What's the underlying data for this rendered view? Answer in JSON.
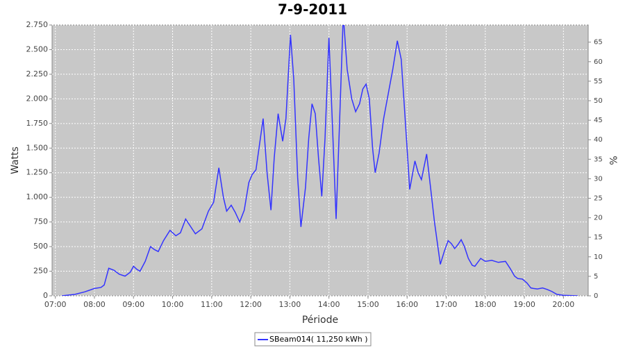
{
  "chart_data": {
    "type": "line",
    "title": "7-9-2011",
    "x_label": "Période",
    "y_label": "Watts",
    "y2_label": "%",
    "x": [
      "07:10",
      "07:30",
      "07:45",
      "08:00",
      "08:10",
      "08:15",
      "08:22",
      "08:30",
      "08:38",
      "08:47",
      "08:55",
      "09:00",
      "09:05",
      "09:10",
      "09:18",
      "09:26",
      "09:32",
      "09:38",
      "09:46",
      "09:56",
      "10:05",
      "10:12",
      "10:20",
      "10:28",
      "10:35",
      "10:45",
      "10:55",
      "11:03",
      "11:11",
      "11:18",
      "11:23",
      "11:30",
      "11:36",
      "11:43",
      "11:50",
      "11:57",
      "12:02",
      "12:08",
      "12:19",
      "12:25",
      "12:31",
      "12:36",
      "12:42",
      "12:49",
      "12:54",
      "13:01",
      "13:06",
      "13:12",
      "13:17",
      "13:24",
      "13:29",
      "13:34",
      "13:39",
      "13:44",
      "13:49",
      "13:54",
      "14:00",
      "14:05",
      "14:11",
      "14:16",
      "14:22",
      "14:28",
      "14:35",
      "14:41",
      "14:47",
      "14:52",
      "14:57",
      "15:02",
      "15:07",
      "15:11",
      "15:17",
      "15:24",
      "15:31",
      "15:38",
      "15:45",
      "15:51",
      "15:58",
      "16:04",
      "16:12",
      "16:17",
      "16:22",
      "16:30",
      "16:36",
      "16:42",
      "16:51",
      "16:57",
      "17:03",
      "17:08",
      "17:13",
      "17:18",
      "17:23",
      "17:28",
      "17:34",
      "17:40",
      "17:44",
      "17:53",
      "18:00",
      "18:10",
      "18:20",
      "18:31",
      "18:38",
      "18:45",
      "18:50",
      "18:57",
      "19:04",
      "19:10",
      "19:14",
      "19:20",
      "19:28",
      "19:35",
      "19:42",
      "19:50",
      "20:00",
      "20:22"
    ],
    "series": [
      {
        "name": "SBeam014( 11,250 kWh )",
        "color": "#3333ff",
        "values": [
          0,
          15,
          40,
          75,
          85,
          110,
          280,
          260,
          220,
          200,
          240,
          300,
          270,
          250,
          350,
          500,
          470,
          450,
          560,
          665,
          610,
          640,
          780,
          700,
          630,
          680,
          860,
          950,
          1300,
          1000,
          860,
          920,
          850,
          750,
          870,
          1150,
          1230,
          1280,
          1800,
          1250,
          870,
          1400,
          1850,
          1570,
          1800,
          2650,
          2200,
          1200,
          700,
          1100,
          1600,
          1950,
          1850,
          1400,
          1010,
          1600,
          2620,
          1800,
          780,
          1700,
          2850,
          2300,
          2000,
          1870,
          1950,
          2100,
          2150,
          2000,
          1500,
          1250,
          1450,
          1800,
          2050,
          2300,
          2590,
          2400,
          1700,
          1080,
          1370,
          1250,
          1180,
          1440,
          1100,
          750,
          320,
          450,
          560,
          530,
          480,
          520,
          570,
          500,
          380,
          310,
          300,
          380,
          350,
          360,
          340,
          350,
          280,
          200,
          175,
          170,
          130,
          80,
          75,
          70,
          80,
          65,
          45,
          15,
          5,
          0
        ]
      }
    ],
    "xlim": [
      "06:55",
      "20:38"
    ],
    "xticks": [
      "07:00",
      "08:00",
      "09:00",
      "10:00",
      "11:00",
      "12:00",
      "13:00",
      "14:00",
      "15:00",
      "16:00",
      "17:00",
      "18:00",
      "19:00",
      "20:00"
    ],
    "ylim": [
      0,
      2750
    ],
    "yticks": [
      0,
      250,
      500,
      750,
      {
        "value": 1000,
        "label": "1.000"
      },
      {
        "value": 1250,
        "label": "1.250"
      },
      {
        "value": 1500,
        "label": "1.500"
      },
      {
        "value": 1750,
        "label": "1.750"
      },
      {
        "value": 2000,
        "label": "2.000"
      },
      {
        "value": 2250,
        "label": "2.250"
      },
      {
        "value": 2500,
        "label": "2.500"
      },
      {
        "value": 2750,
        "label": "2.750"
      }
    ],
    "y2lim": [
      0,
      69.4
    ],
    "y2ticks": [
      0,
      5,
      10,
      15,
      20,
      25,
      30,
      35,
      40,
      45,
      50,
      55,
      60,
      65
    ],
    "grid": true
  }
}
